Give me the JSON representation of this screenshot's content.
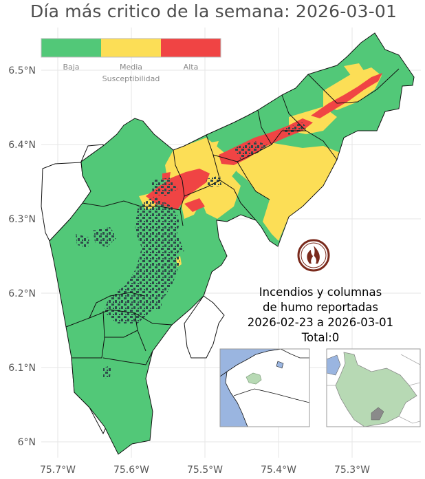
{
  "title": "Día más critico de la semana: 2026-03-01",
  "legend": {
    "title": "Susceptibilidad",
    "classes": [
      {
        "label": "Baja",
        "color": "#52c878"
      },
      {
        "label": "Media",
        "color": "#fcde56"
      },
      {
        "label": "Alta",
        "color": "#f04444"
      }
    ]
  },
  "axes": {
    "y_ticks": [
      "6.5°N",
      "6.4°N",
      "6.3°N",
      "6.2°N",
      "6.1°N",
      "6°N"
    ],
    "x_ticks": [
      "75.7°W",
      "75.6°W",
      "75.5°W",
      "75.4°W",
      "75.3°W"
    ]
  },
  "info": {
    "line1": "Incendios y columnas",
    "line2": "de humo reportadas",
    "line3": "2026-02-23 a 2026-03-01",
    "line4": "Total:0"
  },
  "colors": {
    "forest": "#2d4a4a",
    "water": "#9ab5e0",
    "locator_region": "#b7d9b4",
    "fire_icon_ring": "#7a2a1c"
  },
  "icons": [
    "fire-icon"
  ]
}
